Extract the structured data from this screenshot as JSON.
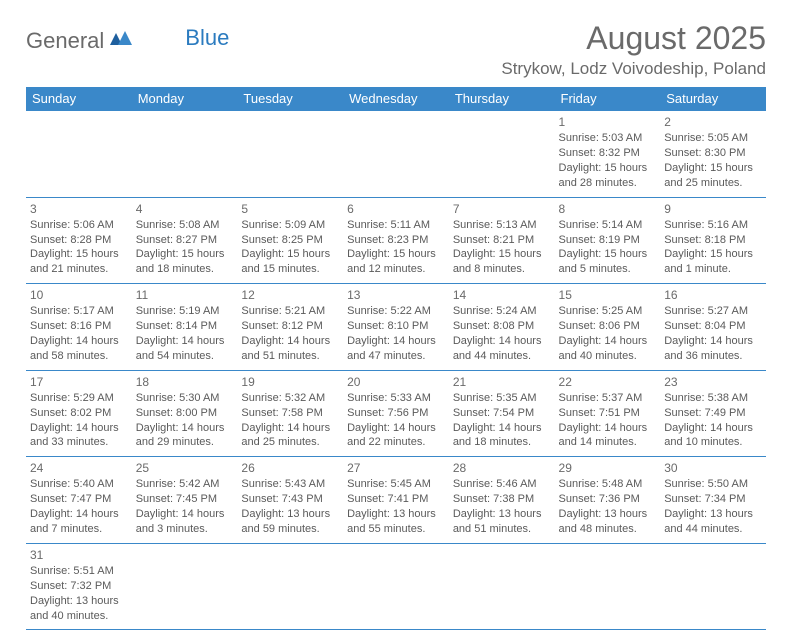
{
  "logo": {
    "part1": "General",
    "part2": "Blue"
  },
  "title": "August 2025",
  "location": "Strykow, Lodz Voivodeship, Poland",
  "daynames": [
    "Sunday",
    "Monday",
    "Tuesday",
    "Wednesday",
    "Thursday",
    "Friday",
    "Saturday"
  ],
  "colors": {
    "header_bg": "#3a88c9",
    "header_text": "#ffffff",
    "border": "#3a88c9",
    "body_text": "#5a5a5a",
    "title_text": "#6a6a6a",
    "logo_blue": "#2b7bbf"
  },
  "weeks": [
    [
      null,
      null,
      null,
      null,
      null,
      {
        "n": "1",
        "sr": "Sunrise: 5:03 AM",
        "ss": "Sunset: 8:32 PM",
        "d1": "Daylight: 15 hours",
        "d2": "and 28 minutes."
      },
      {
        "n": "2",
        "sr": "Sunrise: 5:05 AM",
        "ss": "Sunset: 8:30 PM",
        "d1": "Daylight: 15 hours",
        "d2": "and 25 minutes."
      }
    ],
    [
      {
        "n": "3",
        "sr": "Sunrise: 5:06 AM",
        "ss": "Sunset: 8:28 PM",
        "d1": "Daylight: 15 hours",
        "d2": "and 21 minutes."
      },
      {
        "n": "4",
        "sr": "Sunrise: 5:08 AM",
        "ss": "Sunset: 8:27 PM",
        "d1": "Daylight: 15 hours",
        "d2": "and 18 minutes."
      },
      {
        "n": "5",
        "sr": "Sunrise: 5:09 AM",
        "ss": "Sunset: 8:25 PM",
        "d1": "Daylight: 15 hours",
        "d2": "and 15 minutes."
      },
      {
        "n": "6",
        "sr": "Sunrise: 5:11 AM",
        "ss": "Sunset: 8:23 PM",
        "d1": "Daylight: 15 hours",
        "d2": "and 12 minutes."
      },
      {
        "n": "7",
        "sr": "Sunrise: 5:13 AM",
        "ss": "Sunset: 8:21 PM",
        "d1": "Daylight: 15 hours",
        "d2": "and 8 minutes."
      },
      {
        "n": "8",
        "sr": "Sunrise: 5:14 AM",
        "ss": "Sunset: 8:19 PM",
        "d1": "Daylight: 15 hours",
        "d2": "and 5 minutes."
      },
      {
        "n": "9",
        "sr": "Sunrise: 5:16 AM",
        "ss": "Sunset: 8:18 PM",
        "d1": "Daylight: 15 hours",
        "d2": "and 1 minute."
      }
    ],
    [
      {
        "n": "10",
        "sr": "Sunrise: 5:17 AM",
        "ss": "Sunset: 8:16 PM",
        "d1": "Daylight: 14 hours",
        "d2": "and 58 minutes."
      },
      {
        "n": "11",
        "sr": "Sunrise: 5:19 AM",
        "ss": "Sunset: 8:14 PM",
        "d1": "Daylight: 14 hours",
        "d2": "and 54 minutes."
      },
      {
        "n": "12",
        "sr": "Sunrise: 5:21 AM",
        "ss": "Sunset: 8:12 PM",
        "d1": "Daylight: 14 hours",
        "d2": "and 51 minutes."
      },
      {
        "n": "13",
        "sr": "Sunrise: 5:22 AM",
        "ss": "Sunset: 8:10 PM",
        "d1": "Daylight: 14 hours",
        "d2": "and 47 minutes."
      },
      {
        "n": "14",
        "sr": "Sunrise: 5:24 AM",
        "ss": "Sunset: 8:08 PM",
        "d1": "Daylight: 14 hours",
        "d2": "and 44 minutes."
      },
      {
        "n": "15",
        "sr": "Sunrise: 5:25 AM",
        "ss": "Sunset: 8:06 PM",
        "d1": "Daylight: 14 hours",
        "d2": "and 40 minutes."
      },
      {
        "n": "16",
        "sr": "Sunrise: 5:27 AM",
        "ss": "Sunset: 8:04 PM",
        "d1": "Daylight: 14 hours",
        "d2": "and 36 minutes."
      }
    ],
    [
      {
        "n": "17",
        "sr": "Sunrise: 5:29 AM",
        "ss": "Sunset: 8:02 PM",
        "d1": "Daylight: 14 hours",
        "d2": "and 33 minutes."
      },
      {
        "n": "18",
        "sr": "Sunrise: 5:30 AM",
        "ss": "Sunset: 8:00 PM",
        "d1": "Daylight: 14 hours",
        "d2": "and 29 minutes."
      },
      {
        "n": "19",
        "sr": "Sunrise: 5:32 AM",
        "ss": "Sunset: 7:58 PM",
        "d1": "Daylight: 14 hours",
        "d2": "and 25 minutes."
      },
      {
        "n": "20",
        "sr": "Sunrise: 5:33 AM",
        "ss": "Sunset: 7:56 PM",
        "d1": "Daylight: 14 hours",
        "d2": "and 22 minutes."
      },
      {
        "n": "21",
        "sr": "Sunrise: 5:35 AM",
        "ss": "Sunset: 7:54 PM",
        "d1": "Daylight: 14 hours",
        "d2": "and 18 minutes."
      },
      {
        "n": "22",
        "sr": "Sunrise: 5:37 AM",
        "ss": "Sunset: 7:51 PM",
        "d1": "Daylight: 14 hours",
        "d2": "and 14 minutes."
      },
      {
        "n": "23",
        "sr": "Sunrise: 5:38 AM",
        "ss": "Sunset: 7:49 PM",
        "d1": "Daylight: 14 hours",
        "d2": "and 10 minutes."
      }
    ],
    [
      {
        "n": "24",
        "sr": "Sunrise: 5:40 AM",
        "ss": "Sunset: 7:47 PM",
        "d1": "Daylight: 14 hours",
        "d2": "and 7 minutes."
      },
      {
        "n": "25",
        "sr": "Sunrise: 5:42 AM",
        "ss": "Sunset: 7:45 PM",
        "d1": "Daylight: 14 hours",
        "d2": "and 3 minutes."
      },
      {
        "n": "26",
        "sr": "Sunrise: 5:43 AM",
        "ss": "Sunset: 7:43 PM",
        "d1": "Daylight: 13 hours",
        "d2": "and 59 minutes."
      },
      {
        "n": "27",
        "sr": "Sunrise: 5:45 AM",
        "ss": "Sunset: 7:41 PM",
        "d1": "Daylight: 13 hours",
        "d2": "and 55 minutes."
      },
      {
        "n": "28",
        "sr": "Sunrise: 5:46 AM",
        "ss": "Sunset: 7:38 PM",
        "d1": "Daylight: 13 hours",
        "d2": "and 51 minutes."
      },
      {
        "n": "29",
        "sr": "Sunrise: 5:48 AM",
        "ss": "Sunset: 7:36 PM",
        "d1": "Daylight: 13 hours",
        "d2": "and 48 minutes."
      },
      {
        "n": "30",
        "sr": "Sunrise: 5:50 AM",
        "ss": "Sunset: 7:34 PM",
        "d1": "Daylight: 13 hours",
        "d2": "and 44 minutes."
      }
    ],
    [
      {
        "n": "31",
        "sr": "Sunrise: 5:51 AM",
        "ss": "Sunset: 7:32 PM",
        "d1": "Daylight: 13 hours",
        "d2": "and 40 minutes."
      },
      null,
      null,
      null,
      null,
      null,
      null
    ]
  ]
}
